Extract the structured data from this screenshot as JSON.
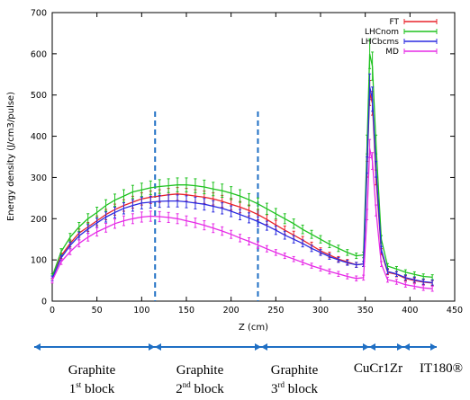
{
  "chart_data": {
    "type": "line",
    "xlabel": "Z (cm)",
    "ylabel": "Energy density (J/cm3/pulse)",
    "xlim": [
      0,
      450
    ],
    "ylim": [
      0,
      700
    ],
    "xticks": [
      0,
      50,
      100,
      150,
      200,
      250,
      300,
      350,
      400,
      450
    ],
    "yticks": [
      0,
      100,
      200,
      300,
      400,
      500,
      600,
      700
    ],
    "legend_position": "top-right",
    "error_bars": true,
    "x": [
      0,
      10,
      20,
      30,
      40,
      50,
      60,
      70,
      80,
      90,
      100,
      110,
      120,
      130,
      140,
      150,
      160,
      170,
      180,
      190,
      200,
      210,
      220,
      230,
      240,
      250,
      260,
      270,
      280,
      290,
      300,
      310,
      320,
      330,
      340,
      348,
      352,
      355,
      358,
      362,
      368,
      375,
      385,
      395,
      405,
      415,
      425
    ],
    "series": [
      {
        "name": "FT",
        "color": "#e8232b",
        "values": [
          55,
          110,
          140,
          165,
          180,
          195,
          210,
          222,
          232,
          240,
          248,
          252,
          255,
          258,
          260,
          258,
          255,
          252,
          248,
          242,
          235,
          228,
          220,
          210,
          198,
          185,
          172,
          160,
          148,
          135,
          122,
          112,
          102,
          95,
          88,
          90,
          320,
          505,
          480,
          300,
          120,
          70,
          65,
          55,
          50,
          46,
          44
        ]
      },
      {
        "name": "LHCnom",
        "color": "#1fc21f",
        "values": [
          60,
          120,
          155,
          180,
          200,
          215,
          232,
          245,
          255,
          265,
          270,
          275,
          278,
          280,
          282,
          282,
          280,
          277,
          272,
          268,
          262,
          255,
          246,
          236,
          224,
          212,
          200,
          188,
          174,
          162,
          150,
          138,
          128,
          118,
          110,
          112,
          380,
          600,
          570,
          380,
          150,
          85,
          78,
          70,
          65,
          60,
          58
        ]
      },
      {
        "name": "LHCbcms",
        "color": "#2a2ae0",
        "values": [
          55,
          105,
          135,
          158,
          175,
          190,
          204,
          215,
          225,
          232,
          238,
          240,
          242,
          243,
          243,
          241,
          238,
          235,
          230,
          225,
          218,
          210,
          202,
          193,
          183,
          172,
          160,
          150,
          140,
          128,
          118,
          108,
          100,
          93,
          88,
          90,
          330,
          520,
          490,
          320,
          125,
          72,
          66,
          57,
          52,
          47,
          45
        ]
      },
      {
        "name": "MD",
        "color": "#e62ae6",
        "values": [
          50,
          95,
          120,
          140,
          155,
          168,
          178,
          188,
          195,
          200,
          204,
          206,
          205,
          203,
          200,
          195,
          190,
          184,
          177,
          170,
          162,
          153,
          145,
          136,
          127,
          118,
          110,
          102,
          94,
          86,
          79,
          72,
          66,
          60,
          55,
          57,
          210,
          370,
          340,
          220,
          90,
          52,
          47,
          40,
          36,
          32,
          30
        ]
      }
    ],
    "markers": [
      {
        "x": 115
      },
      {
        "x": 230
      }
    ]
  },
  "regions": [
    {
      "line1": "Graphite",
      "line2_num": "1",
      "line2_sup": "st",
      "line2_rest": " block"
    },
    {
      "line1": "Graphite",
      "line2_num": "2",
      "line2_sup": "nd",
      "line2_rest": " block"
    },
    {
      "line1": "Graphite",
      "line2_num": "3",
      "line2_sup": "rd",
      "line2_rest": " block"
    },
    {
      "line1": "CuCr1Zr"
    },
    {
      "line1": "IT180®"
    }
  ],
  "colors": {
    "arrow": "#1f6fc4",
    "marker": "#1f6fc4"
  }
}
